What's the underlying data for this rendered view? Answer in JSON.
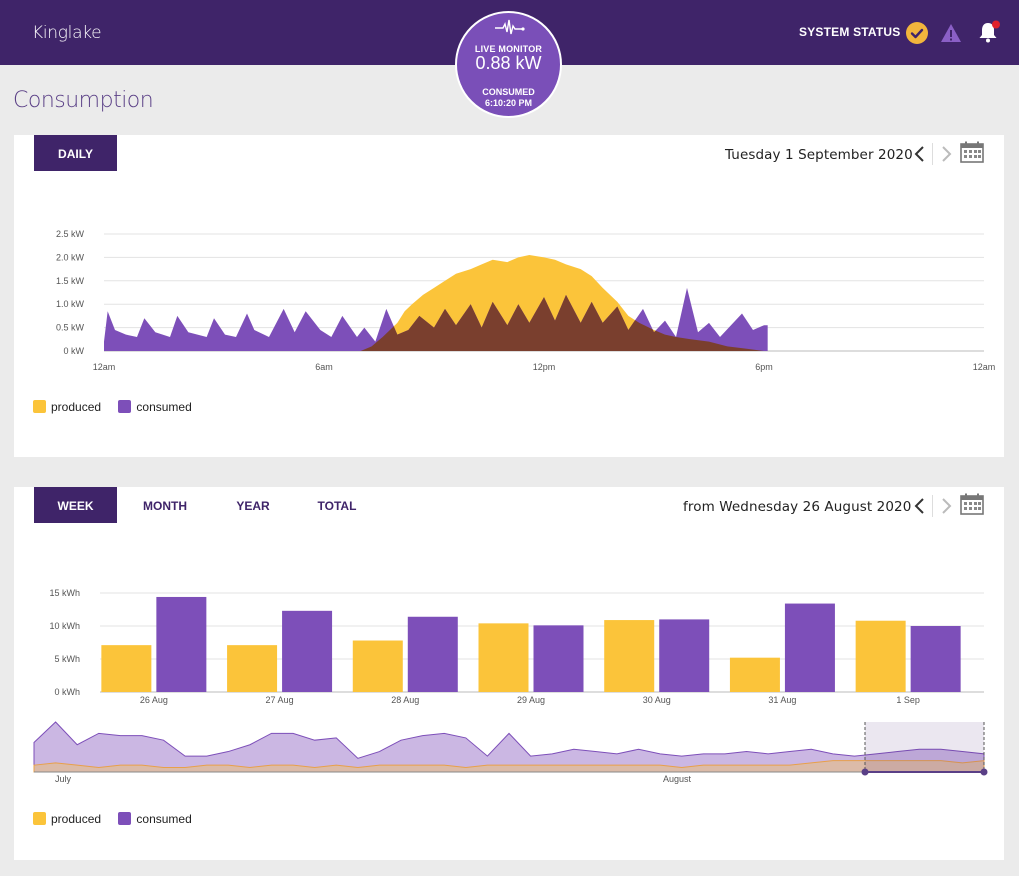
{
  "header": {
    "brand": "Kinglake",
    "system_status": "SYSTEM STATUS",
    "icons": [
      "check-circle-icon",
      "warning-triangle-icon",
      "bell-icon"
    ],
    "notification_dot_color": "#e0202a"
  },
  "live_monitor": {
    "label": "LIVE MONITOR",
    "value": "0.88 kW",
    "consumed_label": "CONSUMED",
    "time": "6:10:20 PM"
  },
  "page": {
    "title": "Consumption"
  },
  "colors": {
    "produced": "#fbc43a",
    "consumed": "#7d4fb9",
    "overlap": "#7a3f2e",
    "brand": "#3f2469"
  },
  "daily": {
    "tab": "DAILY",
    "date": "Tuesday 1 September 2020",
    "legend": {
      "produced": "produced",
      "consumed": "consumed"
    }
  },
  "period": {
    "tabs": [
      "WEEK",
      "MONTH",
      "YEAR",
      "TOTAL"
    ],
    "active_tab": "WEEK",
    "date": "from Wednesday 26 August 2020",
    "legend": {
      "produced": "produced",
      "consumed": "consumed"
    }
  },
  "chart_data": [
    {
      "type": "area",
      "unit": "kW",
      "x_ticks": [
        "12am",
        "6am",
        "12pm",
        "6pm",
        "12am"
      ],
      "y_ticks": [
        "0 kW",
        "0.5 kW",
        "1.0 kW",
        "1.5 kW",
        "2.0 kW",
        "2.5 kW"
      ],
      "ylim": [
        0,
        2.5
      ],
      "xlim_hours": [
        0,
        24
      ],
      "grid": true,
      "legend_position": "bottom-left",
      "series": [
        {
          "name": "produced",
          "x_hours": [
            0,
            7.0,
            7.3,
            7.6,
            8.0,
            8.2,
            8.4,
            8.7,
            9.0,
            9.3,
            9.6,
            10.0,
            10.3,
            10.6,
            11.0,
            11.3,
            11.6,
            12.0,
            12.3,
            12.6,
            13.0,
            13.3,
            13.6,
            14.0,
            14.3,
            14.6,
            15.0,
            15.3,
            15.6,
            16.0,
            16.5,
            17.0,
            17.5,
            18.0,
            24
          ],
          "values": [
            0,
            0,
            0.1,
            0.3,
            0.6,
            0.85,
            1.0,
            1.2,
            1.35,
            1.5,
            1.65,
            1.75,
            1.85,
            1.95,
            1.9,
            2.0,
            2.05,
            2.0,
            1.95,
            1.85,
            1.75,
            1.6,
            1.35,
            1.05,
            0.75,
            0.6,
            0.45,
            0.35,
            0.3,
            0.25,
            0.2,
            0.1,
            0.05,
            0,
            0
          ]
        },
        {
          "name": "consumed",
          "x_hours": [
            0,
            0.1,
            0.3,
            0.6,
            0.9,
            1.1,
            1.4,
            1.8,
            2.0,
            2.3,
            2.8,
            3.0,
            3.3,
            3.6,
            3.9,
            4.1,
            4.5,
            4.9,
            5.2,
            5.5,
            5.9,
            6.2,
            6.5,
            6.9,
            7.1,
            7.4,
            7.7,
            8.0,
            8.3,
            8.6,
            9.0,
            9.3,
            9.6,
            10.0,
            10.3,
            10.6,
            11.0,
            11.3,
            11.6,
            12.0,
            12.3,
            12.6,
            13.0,
            13.3,
            13.6,
            14.0,
            14.3,
            14.7,
            15.0,
            15.3,
            15.6,
            15.9,
            16.2,
            16.5,
            16.8,
            17.1,
            17.4,
            17.7,
            18.0,
            18.1
          ],
          "values": [
            0.2,
            0.85,
            0.45,
            0.35,
            0.3,
            0.7,
            0.4,
            0.3,
            0.75,
            0.4,
            0.3,
            0.7,
            0.35,
            0.3,
            0.8,
            0.45,
            0.3,
            0.9,
            0.4,
            0.85,
            0.45,
            0.3,
            0.75,
            0.3,
            0.5,
            0.2,
            0.9,
            0.35,
            0.45,
            0.75,
            0.5,
            0.9,
            0.55,
            1.0,
            0.5,
            1.05,
            0.55,
            1.0,
            0.6,
            1.15,
            0.65,
            1.2,
            0.6,
            1.05,
            0.6,
            0.95,
            0.45,
            0.9,
            0.4,
            0.65,
            0.3,
            1.35,
            0.4,
            0.6,
            0.3,
            0.55,
            0.8,
            0.45,
            0.55,
            0.55
          ]
        }
      ]
    },
    {
      "type": "bar",
      "unit": "kWh",
      "categories": [
        "26 Aug",
        "27 Aug",
        "28 Aug",
        "29 Aug",
        "30 Aug",
        "31 Aug",
        "1 Sep"
      ],
      "y_ticks": [
        "0 kWh",
        "5 kWh",
        "10 kWh",
        "15 kWh"
      ],
      "ylim": [
        0,
        15
      ],
      "grid": true,
      "legend_position": "bottom-left",
      "series": [
        {
          "name": "produced",
          "values": [
            7.1,
            7.1,
            7.8,
            10.4,
            10.9,
            5.2,
            10.8
          ]
        },
        {
          "name": "consumed",
          "values": [
            14.4,
            12.3,
            11.4,
            10.1,
            11.0,
            13.4,
            10.0
          ]
        }
      ]
    },
    {
      "type": "area",
      "role": "navigator",
      "x_ticks": [
        "July",
        "August"
      ],
      "series": [
        {
          "name": "consumed",
          "values": [
            13,
            22,
            12,
            17,
            16,
            16,
            14,
            7,
            7,
            9,
            12,
            17,
            17,
            14,
            15,
            6,
            9,
            14,
            16,
            17,
            15,
            7,
            17,
            7,
            8,
            10,
            9,
            8,
            10,
            8,
            7,
            8,
            8,
            9,
            8,
            9,
            10,
            8,
            7,
            8,
            9,
            10,
            10,
            9,
            8
          ]
        },
        {
          "name": "produced",
          "values": [
            3,
            4,
            3,
            2,
            3,
            3,
            2,
            2,
            3,
            3,
            2,
            3,
            3,
            2,
            3,
            2,
            3,
            3,
            3,
            3,
            2,
            3,
            3,
            3,
            3,
            3,
            3,
            3,
            3,
            3,
            2,
            3,
            3,
            3,
            3,
            3,
            4,
            5,
            5,
            5,
            5,
            5,
            5,
            4,
            5
          ]
        }
      ]
    }
  ]
}
